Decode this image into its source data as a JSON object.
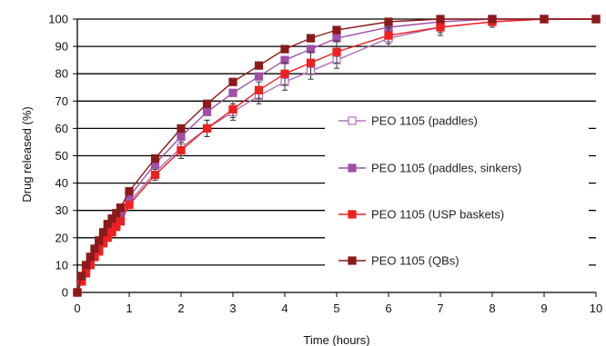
{
  "chart_data": {
    "type": "line",
    "title": "",
    "xlabel": "Time (hours)",
    "ylabel": "Drug released (%)",
    "xlim": [
      0,
      10
    ],
    "ylim": [
      0,
      100
    ],
    "x_ticks": [
      "0",
      "1",
      "2",
      "3",
      "4",
      "5",
      "6",
      "7",
      "8",
      "9",
      "10"
    ],
    "y_ticks": [
      "0",
      "10",
      "20",
      "30",
      "40",
      "50",
      "60",
      "70",
      "80",
      "90",
      "100"
    ],
    "grid": "horizontal",
    "legend_position": "center-right",
    "series": [
      {
        "name": "PEO 1105 (paddles)",
        "color": "#b070b8",
        "marker": "open-square",
        "points": [
          [
            0,
            0
          ],
          [
            0.083,
            4
          ],
          [
            0.167,
            8
          ],
          [
            0.25,
            11
          ],
          [
            0.333,
            13
          ],
          [
            0.417,
            16
          ],
          [
            0.5,
            19
          ],
          [
            0.583,
            21
          ],
          [
            0.667,
            23
          ],
          [
            0.75,
            25
          ],
          [
            0.833,
            27
          ],
          [
            1,
            33
          ],
          [
            1.5,
            44
          ],
          [
            2,
            53
          ],
          [
            2.5,
            60
          ],
          [
            3,
            66
          ],
          [
            3.5,
            72
          ],
          [
            4,
            77
          ],
          [
            4.5,
            81
          ],
          [
            5,
            85
          ],
          [
            6,
            93
          ],
          [
            7,
            97
          ],
          [
            8,
            99
          ],
          [
            9,
            100
          ],
          [
            10,
            100
          ]
        ],
        "error": [
          [
            2,
            3
          ],
          [
            2.5,
            3
          ],
          [
            3,
            3
          ],
          [
            3.5,
            3
          ],
          [
            4,
            3
          ],
          [
            4.5,
            3
          ],
          [
            5,
            3
          ],
          [
            6,
            3
          ],
          [
            7,
            2
          ],
          [
            8,
            1
          ]
        ]
      },
      {
        "name": "PEO 1105 (paddles, sinkers)",
        "color": "#a050a8",
        "marker": "filled-square",
        "points": [
          [
            0,
            0
          ],
          [
            0.083,
            5
          ],
          [
            0.167,
            9
          ],
          [
            0.25,
            12
          ],
          [
            0.333,
            15
          ],
          [
            0.417,
            18
          ],
          [
            0.5,
            21
          ],
          [
            0.583,
            23
          ],
          [
            0.667,
            25
          ],
          [
            0.75,
            27
          ],
          [
            0.833,
            29
          ],
          [
            1,
            35
          ],
          [
            1.5,
            47
          ],
          [
            2,
            57
          ],
          [
            2.5,
            66
          ],
          [
            3,
            73
          ],
          [
            3.5,
            79
          ],
          [
            4,
            85
          ],
          [
            4.5,
            89
          ],
          [
            5,
            93
          ],
          [
            6,
            97
          ],
          [
            7,
            99
          ],
          [
            8,
            100
          ],
          [
            9,
            100
          ],
          [
            10,
            100
          ]
        ],
        "error": []
      },
      {
        "name": "PEO 1105 (USP baskets)",
        "color": "#ee2020",
        "marker": "filled-square",
        "points": [
          [
            0,
            0
          ],
          [
            0.083,
            4
          ],
          [
            0.167,
            7
          ],
          [
            0.25,
            10
          ],
          [
            0.333,
            13
          ],
          [
            0.417,
            15
          ],
          [
            0.5,
            18
          ],
          [
            0.583,
            20
          ],
          [
            0.667,
            22
          ],
          [
            0.75,
            24
          ],
          [
            0.833,
            26
          ],
          [
            1,
            32
          ],
          [
            1.5,
            43
          ],
          [
            2,
            52
          ],
          [
            2.5,
            60
          ],
          [
            3,
            67
          ],
          [
            3.5,
            74
          ],
          [
            4,
            80
          ],
          [
            4.5,
            84
          ],
          [
            5,
            88
          ],
          [
            6,
            94
          ],
          [
            7,
            97
          ],
          [
            8,
            99
          ],
          [
            9,
            100
          ],
          [
            10,
            100
          ]
        ],
        "error": [
          [
            1.5,
            2
          ],
          [
            2,
            3
          ],
          [
            2.5,
            3
          ],
          [
            3,
            3
          ],
          [
            3.5,
            3
          ],
          [
            4,
            4
          ],
          [
            4.5,
            4
          ],
          [
            5,
            4
          ],
          [
            6,
            3
          ],
          [
            7,
            3
          ],
          [
            8,
            2
          ]
        ]
      },
      {
        "name": "PEO 1105 (QBs)",
        "color": "#8b1a1a",
        "marker": "filled-square",
        "points": [
          [
            0,
            0
          ],
          [
            0.083,
            6
          ],
          [
            0.167,
            10
          ],
          [
            0.25,
            13
          ],
          [
            0.333,
            16
          ],
          [
            0.417,
            19
          ],
          [
            0.5,
            22
          ],
          [
            0.583,
            25
          ],
          [
            0.667,
            27
          ],
          [
            0.75,
            29
          ],
          [
            0.833,
            31
          ],
          [
            1,
            37
          ],
          [
            1.5,
            49
          ],
          [
            2,
            60
          ],
          [
            2.5,
            69
          ],
          [
            3,
            77
          ],
          [
            3.5,
            83
          ],
          [
            4,
            89
          ],
          [
            4.5,
            93
          ],
          [
            5,
            96
          ],
          [
            6,
            99
          ],
          [
            7,
            100
          ],
          [
            8,
            100
          ],
          [
            9,
            100
          ],
          [
            10,
            100
          ]
        ],
        "error": []
      }
    ]
  }
}
